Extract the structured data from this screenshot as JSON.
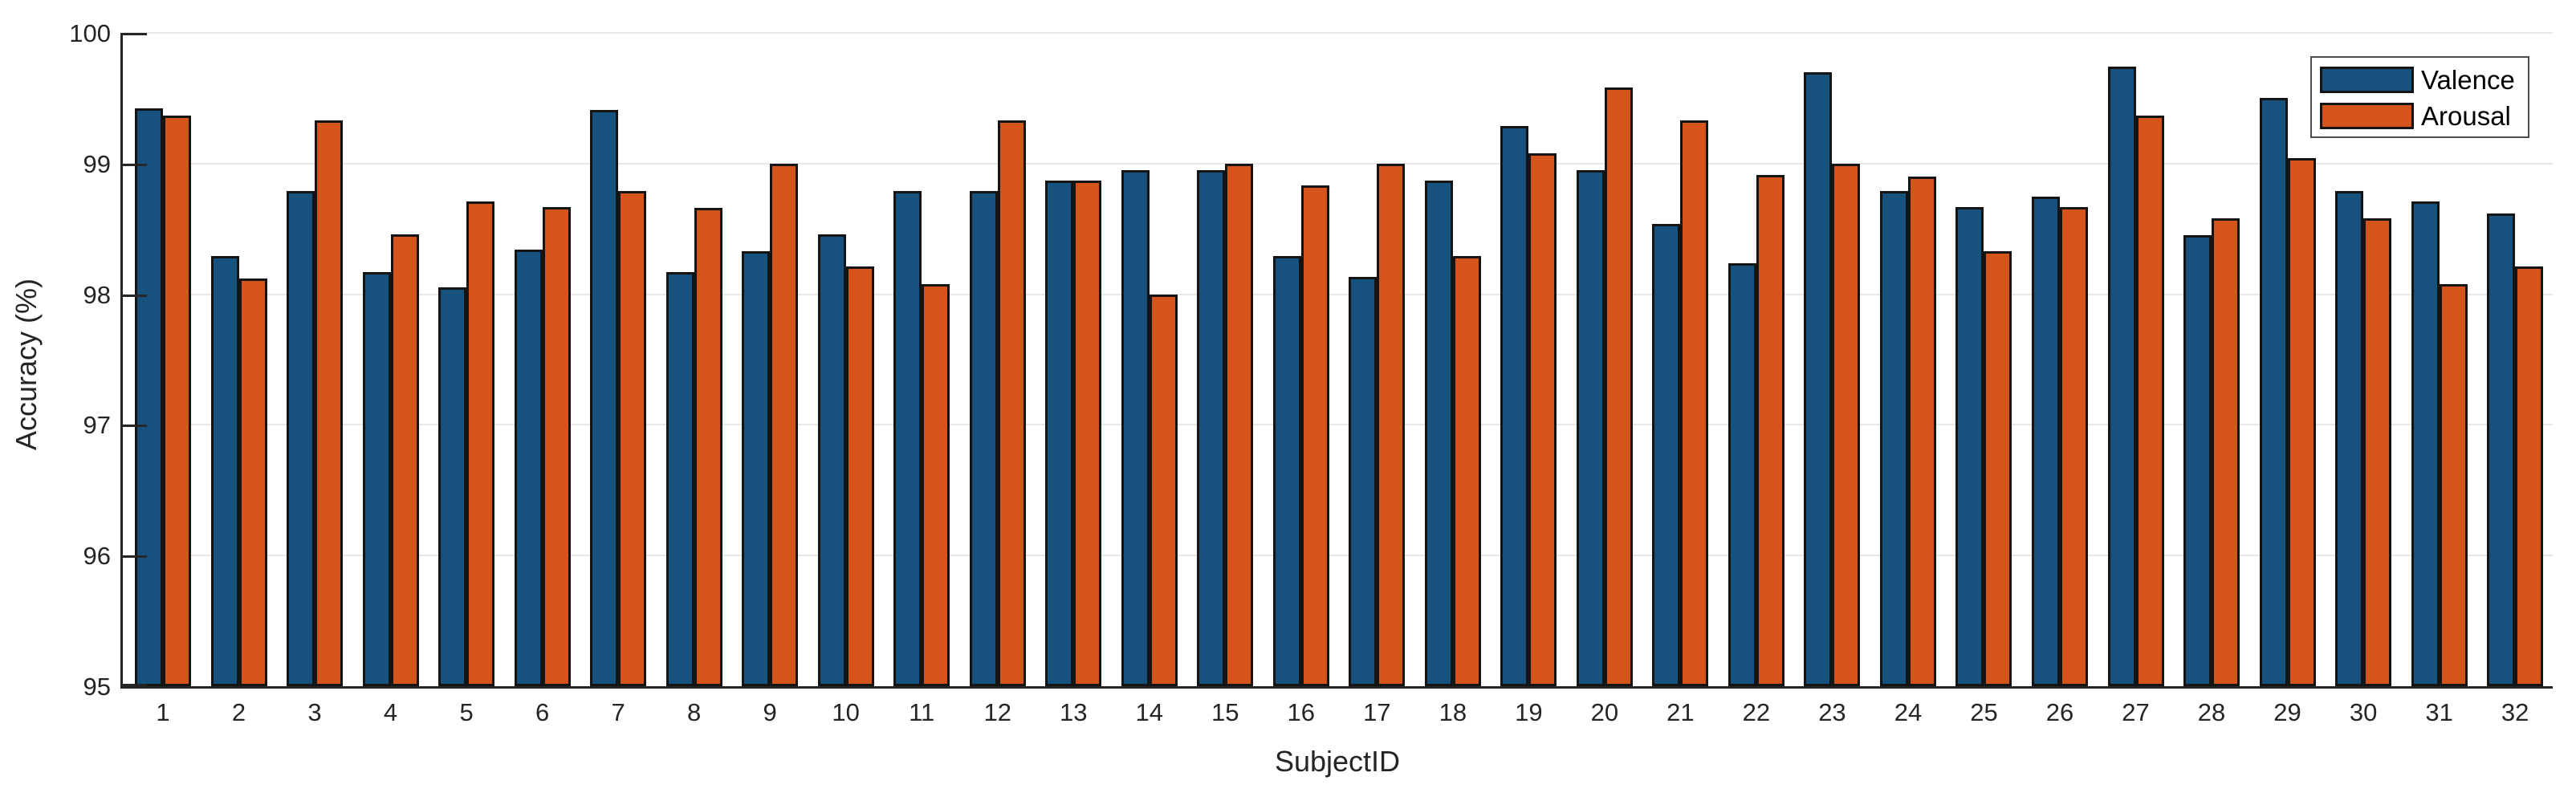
{
  "chart_data": {
    "type": "bar",
    "title": "",
    "xlabel": "SubjectID",
    "ylabel": "Accuracy (%)",
    "ylim": [
      95,
      100
    ],
    "yticks": [
      95,
      96,
      97,
      98,
      99,
      100
    ],
    "grid": "horizontal",
    "legend_position": "top-right",
    "categories": [
      "1",
      "2",
      "3",
      "4",
      "5",
      "6",
      "7",
      "8",
      "9",
      "10",
      "11",
      "12",
      "13",
      "14",
      "15",
      "16",
      "17",
      "18",
      "19",
      "20",
      "21",
      "22",
      "23",
      "24",
      "25",
      "26",
      "27",
      "28",
      "29",
      "30",
      "31",
      "32"
    ],
    "series": [
      {
        "name": "Valence",
        "color": "#17517e",
        "values": [
          99.42,
          98.29,
          98.79,
          98.17,
          98.05,
          98.34,
          99.41,
          98.17,
          98.33,
          98.46,
          98.79,
          98.79,
          98.87,
          98.95,
          98.95,
          98.29,
          98.13,
          98.87,
          99.29,
          98.95,
          98.54,
          98.24,
          99.7,
          98.79,
          98.67,
          98.75,
          99.74,
          98.45,
          99.5,
          98.79,
          98.71,
          98.62
        ]
      },
      {
        "name": "Arousal",
        "color": "#d4541c",
        "values": [
          99.37,
          98.12,
          99.33,
          98.46,
          98.71,
          98.67,
          98.79,
          98.66,
          99.0,
          98.21,
          98.08,
          99.33,
          98.87,
          98.0,
          99.0,
          98.83,
          99.0,
          98.29,
          99.08,
          99.58,
          99.33,
          98.91,
          99.0,
          98.9,
          98.33,
          98.67,
          99.37,
          98.58,
          99.04,
          98.58,
          98.08,
          98.21
        ]
      }
    ],
    "style_colors": {
      "bar_edge": "#141414",
      "gridline": "#e8e8e8",
      "axis": "#252525",
      "legend_border": "#4d4d4d"
    }
  }
}
